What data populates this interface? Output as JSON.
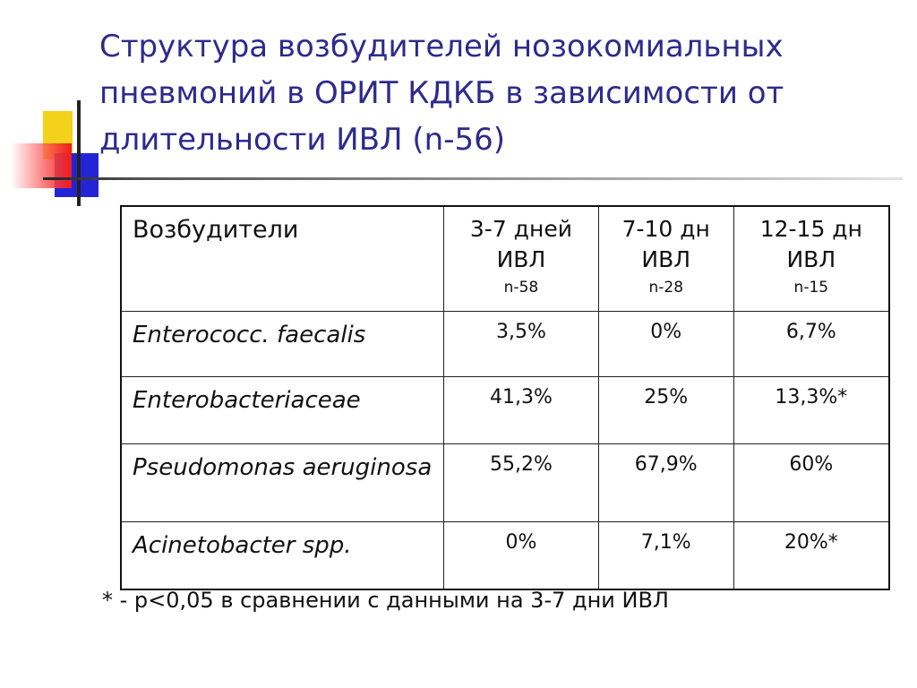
{
  "title": "Структура возбудителей нозокомиальных пневмоний в ОРИТ КДКБ в зависимости от длительности ИВЛ (n-56)",
  "table": {
    "header": {
      "first": "Возбудители",
      "cols": [
        {
          "line1": "3-7 дней",
          "line2": "ИВЛ",
          "n": "n-58"
        },
        {
          "line1": "7-10 дн",
          "line2": "ИВЛ",
          "n": "n-28"
        },
        {
          "line1": "12-15 дн",
          "line2": "ИВЛ",
          "n": "n-15"
        }
      ]
    },
    "rows": [
      {
        "name": "Enterococc. faecalis",
        "values": [
          "3,5%",
          "0%",
          "6,7%"
        ]
      },
      {
        "name": "Enterobacteriaceae",
        "values": [
          "41,3%",
          "25%",
          "13,3%*"
        ]
      },
      {
        "name": "Pseudomonas aeruginosa",
        "values": [
          "55,2%",
          "67,9%",
          "60%"
        ]
      },
      {
        "name": "Acinetobacter spp.",
        "values": [
          "0%",
          "7,1%",
          "20%*"
        ]
      }
    ]
  },
  "footnote": "* - р<0,05 в сравнении с данными на 3-7 дни ИВЛ"
}
